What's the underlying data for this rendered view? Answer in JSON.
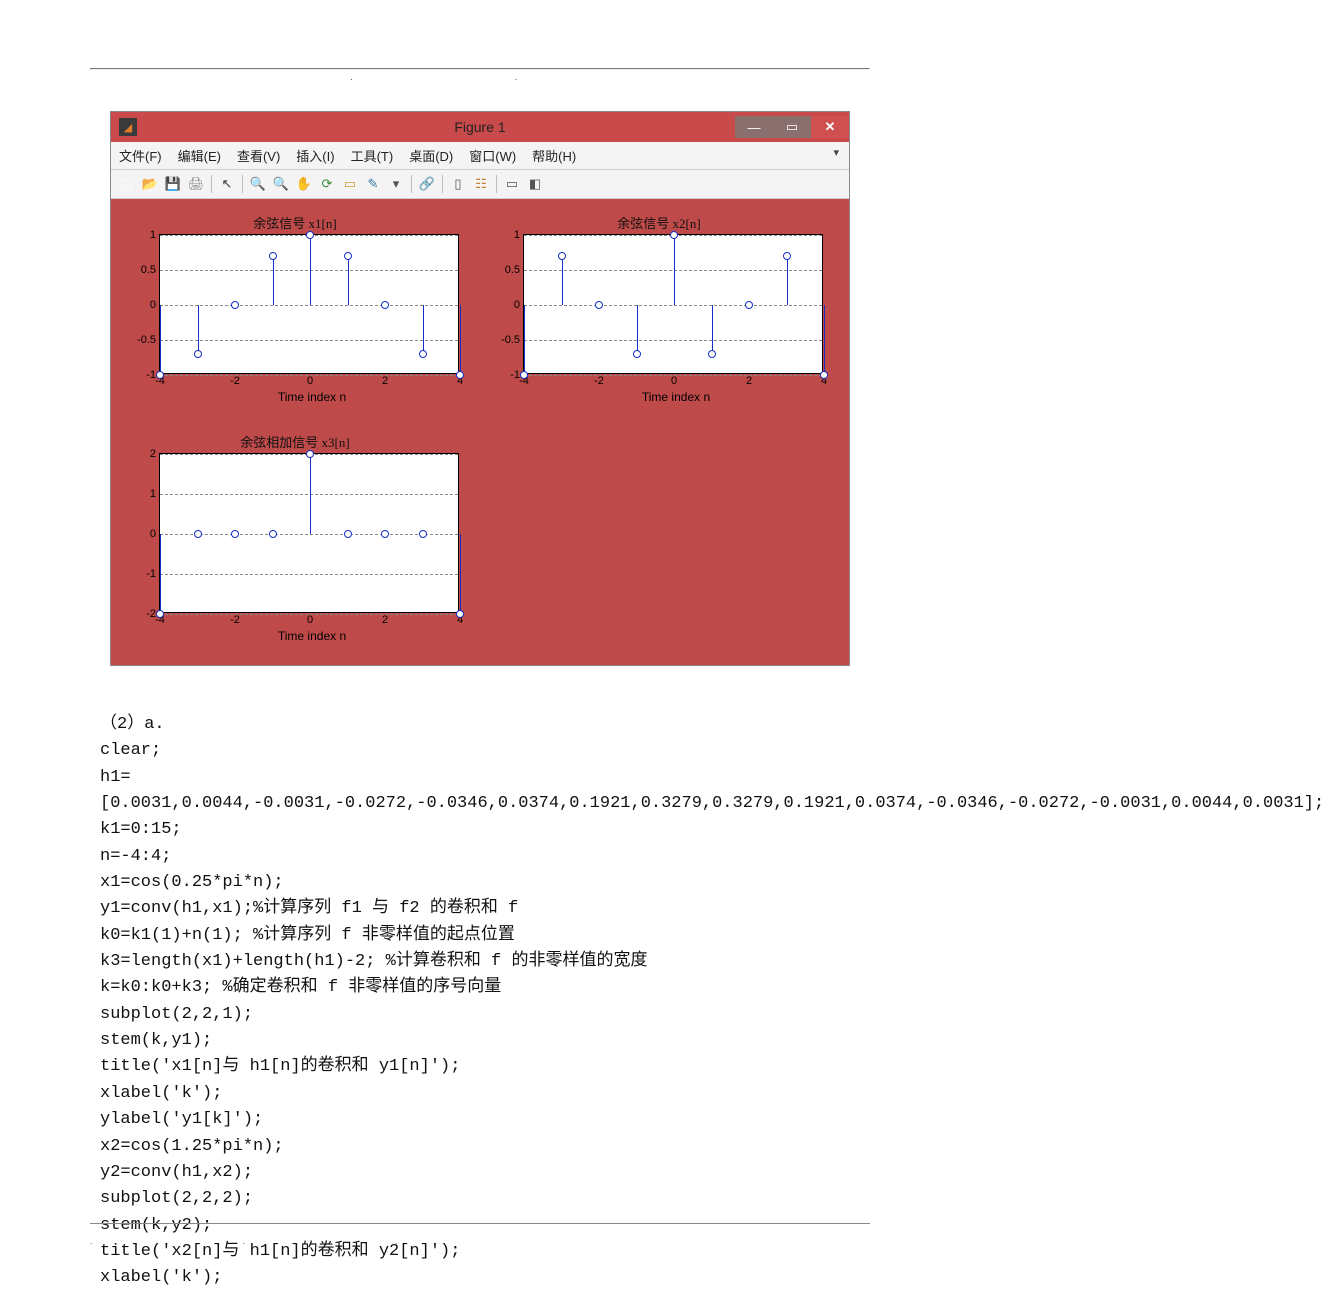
{
  "window": {
    "title": "Figure 1",
    "menus": [
      "文件(F)",
      "编辑(E)",
      "查看(V)",
      "插入(I)",
      "工具(T)",
      "桌面(D)",
      "窗口(W)",
      "帮助(H)"
    ],
    "toolbar_icons": [
      {
        "name": "new-file-icon",
        "glyph": "▢",
        "color": "#fff",
        "bg": "#fff",
        "border": "#999"
      },
      {
        "name": "open-icon",
        "glyph": "📂",
        "color": "#caa24a"
      },
      {
        "name": "save-icon",
        "glyph": "💾",
        "color": "#4a6ac8"
      },
      {
        "name": "print-icon",
        "glyph": "🖨",
        "color": "#888"
      },
      {
        "sep": true
      },
      {
        "name": "pointer-icon",
        "glyph": "↖",
        "color": "#333"
      },
      {
        "sep": true
      },
      {
        "name": "zoom-in-icon",
        "glyph": "🔍",
        "color": "#4a90d9",
        "sup": "+"
      },
      {
        "name": "zoom-out-icon",
        "glyph": "🔍",
        "color": "#4a90d9",
        "sup": "−"
      },
      {
        "name": "pan-icon",
        "glyph": "✋",
        "color": "#e6b85c"
      },
      {
        "name": "rotate-icon",
        "glyph": "⟳",
        "color": "#3a8a3a"
      },
      {
        "name": "datacursor-icon",
        "glyph": "▭",
        "color": "#c8a030"
      },
      {
        "name": "brush-icon",
        "glyph": "✎",
        "color": "#3a7ea8"
      },
      {
        "name": "brush-drop-icon",
        "glyph": "▾",
        "color": "#555"
      },
      {
        "sep": true
      },
      {
        "name": "link-icon",
        "glyph": "🔗",
        "color": "#777"
      },
      {
        "sep": true
      },
      {
        "name": "colorbar-icon",
        "glyph": "▯",
        "color": "#555"
      },
      {
        "name": "legend-icon",
        "glyph": "☷",
        "color": "#c88030"
      },
      {
        "sep": true
      },
      {
        "name": "axes-icon",
        "glyph": "▭",
        "color": "#555"
      },
      {
        "name": "dock-icon",
        "glyph": "◧",
        "color": "#555"
      }
    ],
    "figure_bg": "#bf4a4a",
    "titlebar_bg": "#c94a4a"
  },
  "subplots": [
    {
      "title": "余弦信号 x1[n]",
      "xlabel": "Time index n",
      "type": "stem",
      "stem_color": "#1530c8",
      "marker": "circle",
      "background_color": "#ffffff",
      "grid_color": "#888888",
      "grid_dash": true,
      "xlim": [
        -4,
        4
      ],
      "ylim": [
        -1,
        1
      ],
      "xticks": [
        -4,
        -2,
        0,
        2,
        4
      ],
      "yticks": [
        -1,
        -0.5,
        0,
        0.5,
        1
      ],
      "x": [
        -4,
        -3,
        -2,
        -1,
        0,
        1,
        2,
        3,
        4
      ],
      "y": [
        -1,
        -0.707,
        0,
        0.707,
        1,
        0.707,
        0,
        -0.707,
        -1
      ]
    },
    {
      "title": "余弦信号 x2[n]",
      "xlabel": "Time index n",
      "type": "stem",
      "stem_color": "#1530c8",
      "marker": "circle",
      "background_color": "#ffffff",
      "grid_color": "#888888",
      "grid_dash": true,
      "xlim": [
        -4,
        4
      ],
      "ylim": [
        -1,
        1
      ],
      "xticks": [
        -4,
        -2,
        0,
        2,
        4
      ],
      "yticks": [
        -1,
        -0.5,
        0,
        0.5,
        1
      ],
      "x": [
        -4,
        -3,
        -2,
        -1,
        0,
        1,
        2,
        3,
        4
      ],
      "y": [
        -1,
        0.707,
        0,
        -0.707,
        1,
        -0.707,
        0,
        0.707,
        -1
      ]
    },
    {
      "title": "余弦相加信号 x3[n]",
      "xlabel": "Time index n",
      "type": "stem",
      "stem_color": "#1530c8",
      "marker": "circle",
      "background_color": "#ffffff",
      "grid_color": "#888888",
      "grid_dash": true,
      "xlim": [
        -4,
        4
      ],
      "ylim": [
        -2,
        2
      ],
      "xticks": [
        -4,
        -2,
        0,
        2,
        4
      ],
      "yticks": [
        -2,
        -1,
        0,
        1,
        2
      ],
      "x": [
        -4,
        -3,
        -2,
        -1,
        0,
        1,
        2,
        3,
        4
      ],
      "y": [
        -2,
        0,
        0,
        0,
        2,
        0,
        0,
        0,
        -2
      ]
    }
  ],
  "code": "（2）a.\nclear;\nh1=[0.0031,0.0044,-0.0031,-0.0272,-0.0346,0.0374,0.1921,0.3279,0.3279,0.1921,0.0374,-0.0346,-0.0272,-0.0031,0.0044,0.0031];\nk1=0:15;\nn=-4:4;\nx1=cos(0.25*pi*n);\ny1=conv(h1,x1);%计算序列 f1 与 f2 的卷积和 f\nk0=k1(1)+n(1); %计算序列 f 非零样值的起点位置\nk3=length(x1)+length(h1)-2; %计算卷积和 f 的非零样值的宽度\nk=k0:k0+k3; %确定卷积和 f 非零样值的序号向量\nsubplot(2,2,1);\nstem(k,y1);\ntitle('x1[n]与 h1[n]的卷积和 y1[n]');\nxlabel('k');\nylabel('y1[k]');\nx2=cos(1.25*pi*n);\ny2=conv(h1,x2);\nsubplot(2,2,2);\nstem(k,y2);\ntitle('x2[n]与 h1[n]的卷积和 y2[n]');\nxlabel('k');"
}
